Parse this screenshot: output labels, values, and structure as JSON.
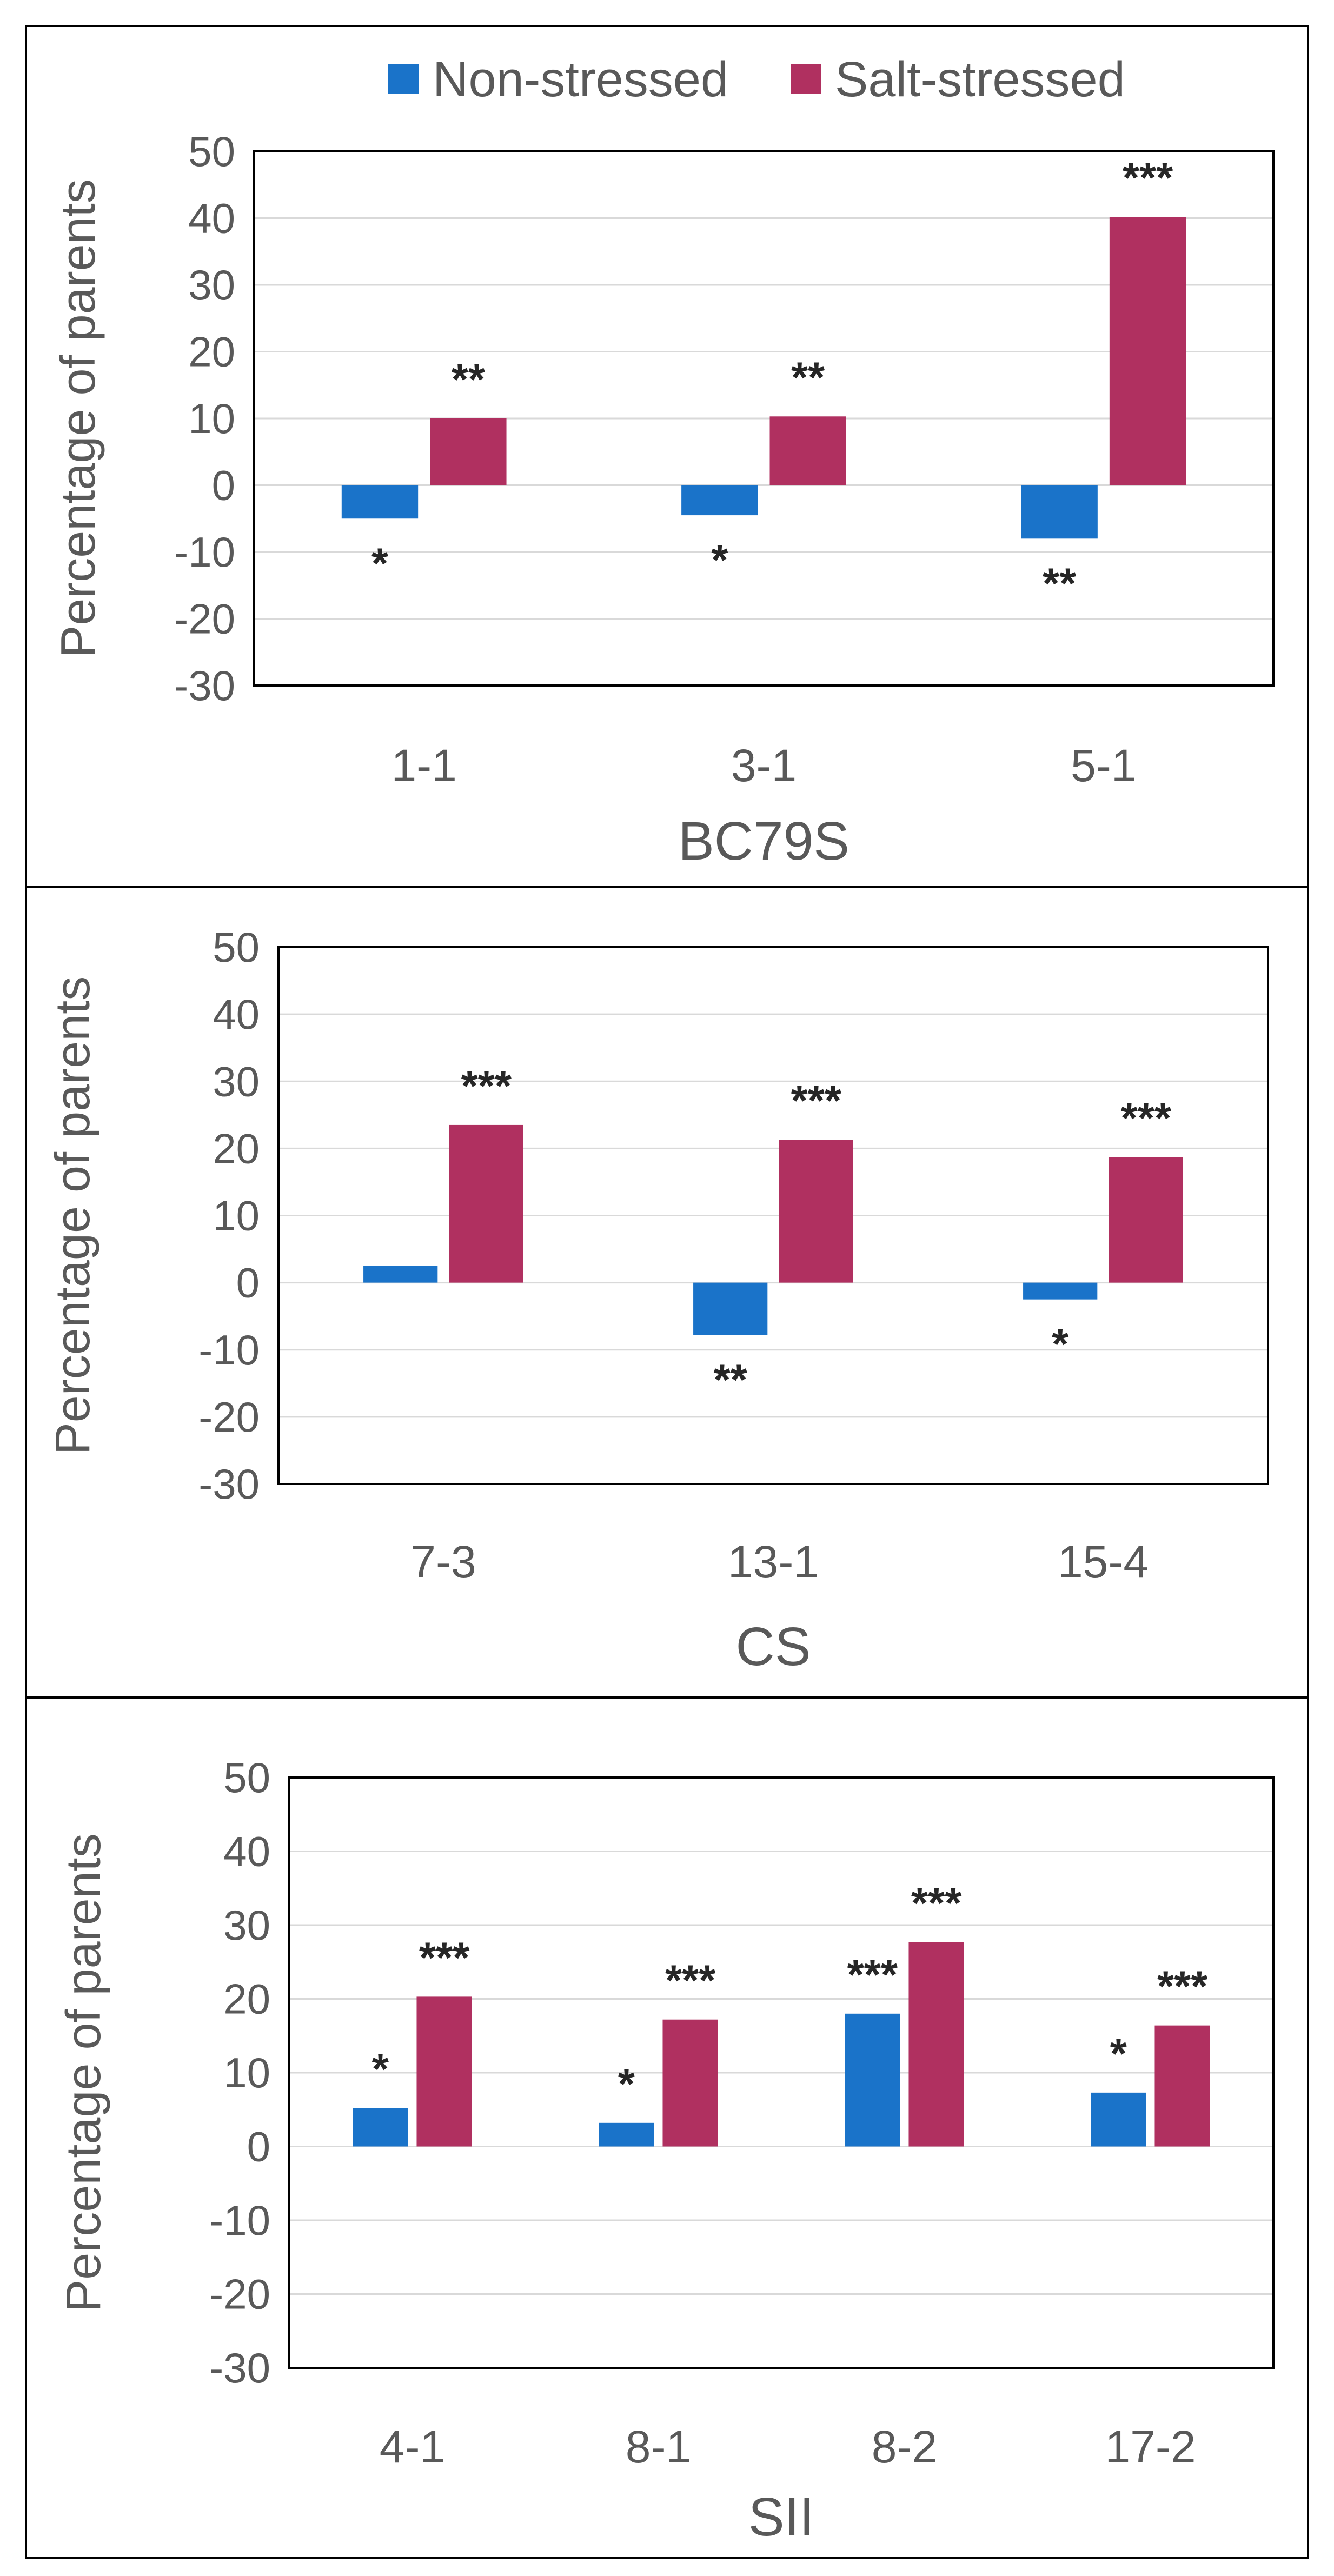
{
  "colors": {
    "non_stressed": "#1a73c9",
    "salt_stressed": "#b03060",
    "grid": "#d9d9d9",
    "frame": "#000000",
    "text": "#595959"
  },
  "legend": [
    {
      "label": "Non-stressed",
      "color": "#1a73c9"
    },
    {
      "label": "Salt-stressed",
      "color": "#b03060"
    }
  ],
  "chart_data": [
    {
      "type": "bar",
      "group_label": "BC79S",
      "ylabel": "Percentage of parents",
      "ylim": [
        -30,
        50
      ],
      "yticks": [
        50,
        40,
        30,
        20,
        10,
        0,
        -10,
        -20,
        -30
      ],
      "grid": true,
      "legend_position": "top",
      "categories": [
        "1-1",
        "3-1",
        "5-1"
      ],
      "series": [
        {
          "name": "Non-stressed",
          "values": [
            -5,
            -4.5,
            -8
          ],
          "significance": [
            "*",
            "*",
            "**"
          ]
        },
        {
          "name": "Salt-stressed",
          "values": [
            10,
            10.3,
            40.2
          ],
          "significance": [
            "**",
            "**",
            "***"
          ]
        }
      ]
    },
    {
      "type": "bar",
      "group_label": "CS",
      "ylabel": "Percentage of parents",
      "ylim": [
        -30,
        50
      ],
      "yticks": [
        50,
        40,
        30,
        20,
        10,
        0,
        -10,
        -20,
        -30
      ],
      "grid": true,
      "categories": [
        "7-3",
        "13-1",
        "15-4"
      ],
      "series": [
        {
          "name": "Non-stressed",
          "values": [
            2.5,
            -7.8,
            -2.5
          ],
          "significance": [
            "",
            "**",
            "*"
          ]
        },
        {
          "name": "Salt-stressed",
          "values": [
            23.5,
            21.3,
            18.7
          ],
          "significance": [
            "***",
            "***",
            "***"
          ]
        }
      ]
    },
    {
      "type": "bar",
      "group_label": "SII",
      "ylabel": "Percentage of parents",
      "ylim": [
        -30,
        50
      ],
      "yticks": [
        50,
        40,
        30,
        20,
        10,
        0,
        -10,
        -20,
        -30
      ],
      "grid": true,
      "categories": [
        "4-1",
        "8-1",
        "8-2",
        "17-2"
      ],
      "series": [
        {
          "name": "Non-stressed",
          "values": [
            5.2,
            3.2,
            18,
            7.3
          ],
          "significance": [
            "*",
            "*",
            "***",
            "*"
          ]
        },
        {
          "name": "Salt-stressed",
          "values": [
            20.3,
            17.2,
            27.7,
            16.4
          ],
          "significance": [
            "***",
            "***",
            "***",
            "***"
          ]
        }
      ]
    }
  ]
}
